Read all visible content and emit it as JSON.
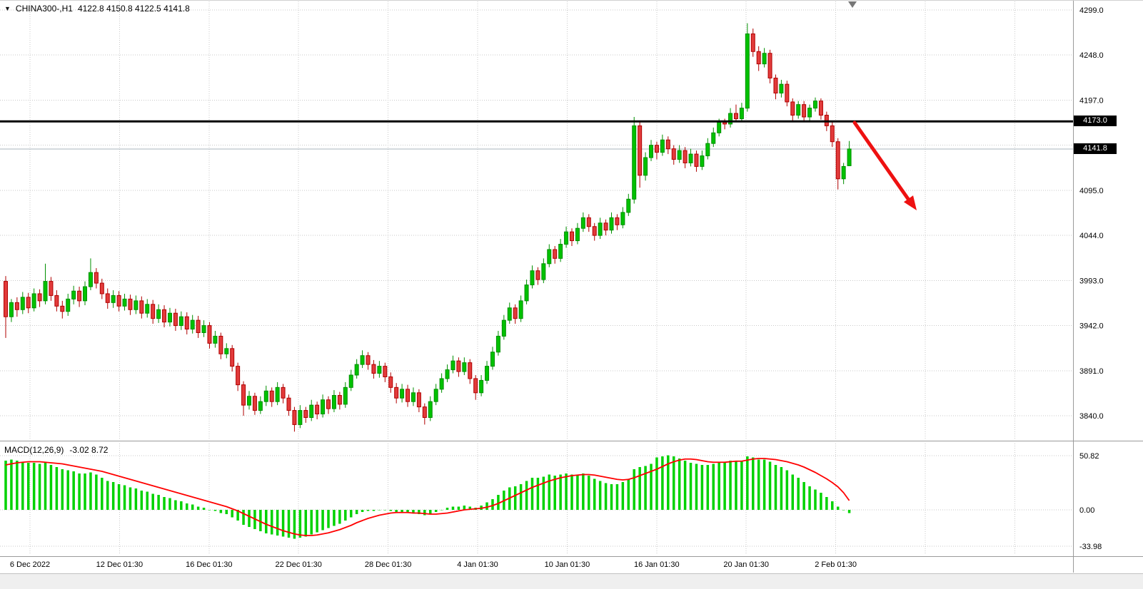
{
  "header": {
    "dropdown_icon": "▼",
    "symbol_period": "CHINA300-,H1",
    "ohlc": "4122.8 4150.8 4122.5 4141.8"
  },
  "macd": {
    "label": "MACD(12,26,9)",
    "values_text": "-3.02 8.72",
    "axis_levels": [
      {
        "text": "50.82",
        "value": 50.82
      },
      {
        "text": "0.00",
        "value": 0
      },
      {
        "text": "-33.98",
        "value": -33.98
      }
    ]
  },
  "price_axis": {
    "labels": [
      {
        "text": "4299.0",
        "value": 4299
      },
      {
        "text": "4248.0",
        "value": 4248
      },
      {
        "text": "4197.0",
        "value": 4197
      },
      {
        "text": "4095.0",
        "value": 4095
      },
      {
        "text": "4044.0",
        "value": 4044
      },
      {
        "text": "3993.0",
        "value": 3993
      },
      {
        "text": "3942.0",
        "value": 3942
      },
      {
        "text": "3891.0",
        "value": 3891
      },
      {
        "text": "3840.0",
        "value": 3840
      }
    ],
    "gridline_values": [
      4299,
      4248,
      4197,
      4146,
      4095,
      4044,
      3993,
      3942,
      3891,
      3840
    ],
    "resistance_tag": {
      "label": "4173.0",
      "value": 4173
    },
    "bid_tag": {
      "label": "4141.8",
      "value": 4141.8
    }
  },
  "time_axis": {
    "labels": [
      "6 Dec 2022",
      "12 Dec 01:30",
      "16 Dec 01:30",
      "22 Dec 01:30",
      "28 Dec 01:30",
      "4 Jan 01:30",
      "10 Jan 01:30",
      "16 Jan 01:30",
      "20 Jan 01:30",
      "2 Feb 01:30"
    ]
  },
  "colors": {
    "bull": "#00c200",
    "bull_border": "#008f00",
    "bear": "#e23b3b",
    "bear_border": "#b00000",
    "macd_hist": "#00d200",
    "macd_signal": "#ff0000",
    "grid": "#c9c9c9",
    "resistance_line": "#000000",
    "bid_line": "#aab4be",
    "arrow": "#ee1111",
    "tag_bg": "#000000",
    "tag_fg": "#ffffff"
  },
  "chart_data": {
    "type": "candlestick",
    "symbol": "CHINA300-",
    "timeframe": "H1",
    "current_bar": {
      "open": 4122.8,
      "high": 4150.8,
      "low": 4122.5,
      "close": 4141.8
    },
    "price_range_labels": [
      3840,
      4299
    ],
    "annotations": {
      "horizontal_line_price": 4173,
      "bid_price": 4141.8,
      "trend_arrow": "down-right"
    },
    "indicator": {
      "name": "MACD",
      "params": [
        12,
        26,
        9
      ],
      "main_last": -3.02,
      "signal_last": 8.72,
      "axis_max": 50.82,
      "axis_min": -33.98
    },
    "candles": [
      [
        3992,
        3998,
        3928,
        3952
      ],
      [
        3952,
        3972,
        3946,
        3968
      ],
      [
        3968,
        3974,
        3952,
        3960
      ],
      [
        3960,
        3980,
        3955,
        3974
      ],
      [
        3974,
        3979,
        3956,
        3962
      ],
      [
        3962,
        3984,
        3958,
        3978
      ],
      [
        3978,
        3983,
        3963,
        3970
      ],
      [
        3970,
        4012,
        3966,
        3992
      ],
      [
        3992,
        3997,
        3970,
        3976
      ],
      [
        3976,
        3982,
        3958,
        3964
      ],
      [
        3964,
        3970,
        3950,
        3958
      ],
      [
        3958,
        3978,
        3953,
        3972
      ],
      [
        3972,
        3987,
        3966,
        3981
      ],
      [
        3981,
        3986,
        3963,
        3970
      ],
      [
        3970,
        3992,
        3965,
        3986
      ],
      [
        3986,
        4018,
        3982,
        4002
      ],
      [
        4002,
        4007,
        3984,
        3990
      ],
      [
        3990,
        3995,
        3972,
        3978
      ],
      [
        3978,
        3984,
        3961,
        3968
      ],
      [
        3968,
        3982,
        3962,
        3976
      ],
      [
        3976,
        3981,
        3958,
        3964
      ],
      [
        3964,
        3978,
        3959,
        3972
      ],
      [
        3972,
        3977,
        3954,
        3960
      ],
      [
        3960,
        3976,
        3955,
        3970
      ],
      [
        3970,
        3975,
        3950,
        3956
      ],
      [
        3956,
        3972,
        3951,
        3966
      ],
      [
        3966,
        3971,
        3944,
        3950
      ],
      [
        3950,
        3966,
        3945,
        3960
      ],
      [
        3960,
        3965,
        3940,
        3946
      ],
      [
        3946,
        3962,
        3941,
        3956
      ],
      [
        3956,
        3961,
        3936,
        3942
      ],
      [
        3942,
        3958,
        3937,
        3952
      ],
      [
        3952,
        3957,
        3932,
        3938
      ],
      [
        3938,
        3954,
        3933,
        3948
      ],
      [
        3948,
        3953,
        3928,
        3934
      ],
      [
        3934,
        3948,
        3929,
        3942
      ],
      [
        3942,
        3946,
        3916,
        3922
      ],
      [
        3922,
        3936,
        3917,
        3930
      ],
      [
        3930,
        3934,
        3904,
        3910
      ],
      [
        3910,
        3922,
        3905,
        3916
      ],
      [
        3916,
        3920,
        3890,
        3896
      ],
      [
        3896,
        3900,
        3868,
        3875
      ],
      [
        3875,
        3879,
        3840,
        3852
      ],
      [
        3852,
        3868,
        3847,
        3862
      ],
      [
        3862,
        3866,
        3841,
        3846
      ],
      [
        3846,
        3862,
        3842,
        3856
      ],
      [
        3856,
        3874,
        3851,
        3868
      ],
      [
        3868,
        3872,
        3850,
        3856
      ],
      [
        3856,
        3878,
        3852,
        3872
      ],
      [
        3872,
        3876,
        3854,
        3860
      ],
      [
        3860,
        3864,
        3840,
        3846
      ],
      [
        3846,
        3850,
        3822,
        3830
      ],
      [
        3830,
        3852,
        3826,
        3846
      ],
      [
        3846,
        3850,
        3832,
        3838
      ],
      [
        3838,
        3858,
        3834,
        3852
      ],
      [
        3852,
        3856,
        3836,
        3842
      ],
      [
        3842,
        3864,
        3838,
        3858
      ],
      [
        3858,
        3862,
        3842,
        3848
      ],
      [
        3848,
        3869,
        3844,
        3863
      ],
      [
        3863,
        3867,
        3847,
        3853
      ],
      [
        3853,
        3878,
        3849,
        3872
      ],
      [
        3872,
        3892,
        3868,
        3886
      ],
      [
        3886,
        3904,
        3882,
        3898
      ],
      [
        3898,
        3914,
        3894,
        3908
      ],
      [
        3908,
        3912,
        3892,
        3898
      ],
      [
        3898,
        3903,
        3882,
        3888
      ],
      [
        3888,
        3902,
        3883,
        3896
      ],
      [
        3896,
        3900,
        3878,
        3884
      ],
      [
        3884,
        3889,
        3866,
        3872
      ],
      [
        3872,
        3877,
        3854,
        3860
      ],
      [
        3860,
        3876,
        3855,
        3870
      ],
      [
        3870,
        3875,
        3850,
        3856
      ],
      [
        3856,
        3872,
        3851,
        3866
      ],
      [
        3866,
        3870,
        3844,
        3850
      ],
      [
        3850,
        3854,
        3830,
        3838
      ],
      [
        3838,
        3862,
        3834,
        3856
      ],
      [
        3856,
        3876,
        3852,
        3870
      ],
      [
        3870,
        3888,
        3866,
        3882
      ],
      [
        3882,
        3898,
        3878,
        3892
      ],
      [
        3892,
        3908,
        3888,
        3902
      ],
      [
        3902,
        3906,
        3884,
        3890
      ],
      [
        3890,
        3906,
        3886,
        3900
      ],
      [
        3900,
        3904,
        3876,
        3882
      ],
      [
        3882,
        3886,
        3858,
        3866
      ],
      [
        3866,
        3886,
        3862,
        3880
      ],
      [
        3880,
        3902,
        3876,
        3896
      ],
      [
        3896,
        3918,
        3892,
        3912
      ],
      [
        3912,
        3936,
        3908,
        3930
      ],
      [
        3930,
        3954,
        3926,
        3948
      ],
      [
        3948,
        3968,
        3944,
        3962
      ],
      [
        3962,
        3966,
        3944,
        3950
      ],
      [
        3950,
        3976,
        3946,
        3970
      ],
      [
        3970,
        3994,
        3966,
        3988
      ],
      [
        3988,
        4010,
        3984,
        4004
      ],
      [
        4004,
        4008,
        3988,
        3994
      ],
      [
        3994,
        4018,
        3990,
        4012
      ],
      [
        4012,
        4034,
        4008,
        4028
      ],
      [
        4028,
        4032,
        4012,
        4018
      ],
      [
        4018,
        4040,
        4014,
        4034
      ],
      [
        4034,
        4054,
        4030,
        4048
      ],
      [
        4048,
        4052,
        4032,
        4038
      ],
      [
        4038,
        4058,
        4034,
        4052
      ],
      [
        4052,
        4070,
        4048,
        4064
      ],
      [
        4064,
        4068,
        4048,
        4054
      ],
      [
        4054,
        4058,
        4038,
        4044
      ],
      [
        4044,
        4064,
        4040,
        4058
      ],
      [
        4058,
        4062,
        4044,
        4050
      ],
      [
        4050,
        4070,
        4046,
        4064
      ],
      [
        4064,
        4068,
        4050,
        4056
      ],
      [
        4056,
        4076,
        4052,
        4070
      ],
      [
        4070,
        4091,
        4066,
        4085
      ],
      [
        4085,
        4178,
        4080,
        4168
      ],
      [
        4168,
        4174,
        4098,
        4112
      ],
      [
        4112,
        4138,
        4106,
        4132
      ],
      [
        4132,
        4152,
        4128,
        4146
      ],
      [
        4146,
        4150,
        4130,
        4138
      ],
      [
        4138,
        4158,
        4134,
        4152
      ],
      [
        4152,
        4156,
        4136,
        4142
      ],
      [
        4142,
        4146,
        4124,
        4130
      ],
      [
        4130,
        4146,
        4126,
        4140
      ],
      [
        4140,
        4144,
        4120,
        4126
      ],
      [
        4126,
        4142,
        4122,
        4136
      ],
      [
        4136,
        4140,
        4116,
        4122
      ],
      [
        4122,
        4140,
        4118,
        4134
      ],
      [
        4134,
        4154,
        4130,
        4148
      ],
      [
        4148,
        4166,
        4144,
        4160
      ],
      [
        4160,
        4176,
        4156,
        4172
      ],
      [
        4172,
        4176,
        4164,
        4170
      ],
      [
        4170,
        4188,
        4166,
        4182
      ],
      [
        4182,
        4192,
        4174,
        4176
      ],
      [
        4176,
        4194,
        4172,
        4188
      ],
      [
        4188,
        4284,
        4184,
        4272
      ],
      [
        4272,
        4278,
        4246,
        4252
      ],
      [
        4252,
        4258,
        4230,
        4238
      ],
      [
        4238,
        4256,
        4234,
        4250
      ],
      [
        4250,
        4254,
        4216,
        4222
      ],
      [
        4222,
        4226,
        4198,
        4205
      ],
      [
        4205,
        4220,
        4200,
        4215
      ],
      [
        4215,
        4219,
        4190,
        4195
      ],
      [
        4195,
        4199,
        4174,
        4180
      ],
      [
        4180,
        4196,
        4176,
        4192
      ],
      [
        4192,
        4196,
        4172,
        4178
      ],
      [
        4178,
        4192,
        4174,
        4188
      ],
      [
        4188,
        4200,
        4184,
        4196
      ],
      [
        4196,
        4199,
        4175,
        4180
      ],
      [
        4180,
        4184,
        4162,
        4168
      ],
      [
        4168,
        4172,
        4144,
        4150
      ],
      [
        4150,
        4154,
        4096,
        4108
      ],
      [
        4108,
        4126,
        4102,
        4122
      ],
      [
        4122.8,
        4150.8,
        4122.5,
        4141.8
      ]
    ],
    "macd_main": [
      46,
      47,
      46,
      45,
      44,
      44,
      43,
      44,
      42,
      40,
      38,
      37,
      36,
      34,
      34,
      35,
      33,
      30,
      27,
      26,
      24,
      23,
      21,
      20,
      18,
      17,
      15,
      14,
      12,
      11,
      9,
      8,
      6,
      5,
      3,
      2,
      0,
      -1,
      -3,
      -4,
      -7,
      -10,
      -14,
      -16,
      -18,
      -20,
      -22,
      -23,
      -24,
      -25,
      -26,
      -27,
      -26,
      -25,
      -23,
      -21,
      -19,
      -17,
      -15,
      -13,
      -10,
      -7,
      -4,
      -2,
      -1,
      -1,
      0,
      0,
      -1,
      -2,
      -2,
      -3,
      -3,
      -4,
      -5,
      -4,
      -2,
      0,
      2,
      3,
      3,
      4,
      3,
      2,
      4,
      7,
      10,
      14,
      18,
      21,
      22,
      24,
      27,
      30,
      30,
      31,
      33,
      32,
      33,
      34,
      33,
      33,
      34,
      32,
      29,
      27,
      25,
      24,
      24,
      26,
      29,
      38,
      40,
      41,
      43,
      49,
      50,
      51,
      50,
      48,
      46,
      44,
      43,
      42,
      42,
      43,
      44,
      45,
      46,
      46,
      46,
      50,
      49,
      47,
      47,
      45,
      42,
      40,
      37,
      33,
      30,
      26,
      22,
      19,
      16,
      12,
      8,
      3,
      0,
      -3.02
    ],
    "macd_signal": [
      42,
      43,
      44,
      44.5,
      45,
      45,
      45,
      44.5,
      44,
      43.5,
      43,
      42,
      41,
      40,
      39,
      38,
      37,
      36,
      34.5,
      33,
      31.5,
      30,
      28.5,
      27,
      25.5,
      24,
      22.5,
      21,
      19.5,
      18,
      16.5,
      15,
      13.5,
      12,
      10.5,
      9,
      7.5,
      6,
      4.5,
      3,
      1,
      -1,
      -3.5,
      -6,
      -8.5,
      -11,
      -13.5,
      -15.5,
      -17.5,
      -19.5,
      -21,
      -22.5,
      -23.5,
      -24,
      -24,
      -23.5,
      -22.5,
      -21.5,
      -20,
      -18.5,
      -16.5,
      -14.5,
      -12,
      -10,
      -8,
      -6.5,
      -5,
      -4,
      -3,
      -2.5,
      -2.5,
      -2.5,
      -3,
      -3,
      -3.5,
      -4,
      -4,
      -3.5,
      -3,
      -2,
      -1,
      0,
      0.5,
      1,
      1.5,
      2.5,
      4,
      6,
      8.5,
      11,
      13.5,
      16,
      18.5,
      21,
      23,
      25,
      27,
      28.5,
      30,
      31,
      32,
      32.5,
      33,
      33,
      32.5,
      31.5,
      30.5,
      29.5,
      28.5,
      28,
      28.5,
      30,
      32,
      34,
      36,
      38,
      40.5,
      43,
      45,
      46.5,
      47.5,
      47.5,
      47,
      46,
      45,
      44.5,
      44.5,
      44.5,
      45,
      45.5,
      45.5,
      46.5,
      47.5,
      48,
      48,
      47.5,
      47,
      46,
      45,
      43.5,
      42,
      40,
      37.5,
      35,
      32,
      29,
      25.5,
      21.5,
      16,
      8.72
    ]
  }
}
